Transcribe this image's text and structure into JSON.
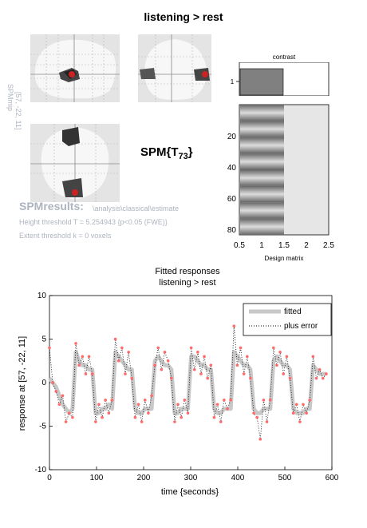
{
  "window": {
    "title": "listening > rest"
  },
  "mip": {
    "side_label": "SPMmip",
    "coords_label": "[57, -22, 11]",
    "stat_label": "SPM{T",
    "stat_sub": "73",
    "stat_close": "}"
  },
  "results": {
    "title": "SPMresults:",
    "path": "\\analysis\\classical\\estimate",
    "height_threshold": "Height threshold T = 5.254943  {p<0.05 (FWE)}",
    "extent_threshold": "Extent threshold k = 0 voxels"
  },
  "contrast": {
    "label": "contrast",
    "y_tick": "1"
  },
  "design_matrix": {
    "xlabel": "Design matrix",
    "x_ticks": [
      "0.5",
      "1",
      "1.5",
      "2",
      "2.5"
    ],
    "y_ticks": [
      "20",
      "40",
      "60",
      "80"
    ]
  },
  "fitted": {
    "title_line1": "Fitted responses",
    "title_line2": "listening > rest",
    "xlabel": "time {seconds}",
    "ylabel": "response at [57, -22, 11]",
    "legend": [
      "fitted",
      "plus error"
    ]
  },
  "chart_data": {
    "type": "line",
    "title": "Fitted responses",
    "subtitle": "listening > rest",
    "xlabel": "time {seconds}",
    "ylabel": "response at [57, -22, 11]",
    "xlim": [
      0,
      600
    ],
    "ylim": [
      -10,
      10
    ],
    "x_ticks": [
      0,
      100,
      200,
      300,
      400,
      500,
      600
    ],
    "y_ticks": [
      -10,
      -5,
      0,
      5,
      10
    ],
    "legend_position": "top-right",
    "grid": false,
    "series": [
      {
        "name": "fitted",
        "color": "#c8c8c8",
        "x": [
          0,
          7,
          14,
          21,
          28,
          35,
          42,
          49,
          56,
          63,
          70,
          77,
          84,
          91,
          98,
          105,
          112,
          119,
          126,
          133,
          140,
          147,
          154,
          161,
          168,
          175,
          182,
          189,
          196,
          203,
          210,
          217,
          224,
          231,
          238,
          245,
          252,
          259,
          266,
          273,
          280,
          287,
          294,
          301,
          308,
          315,
          322,
          329,
          336,
          343,
          350,
          357,
          364,
          371,
          378,
          385,
          392,
          399,
          406,
          413,
          420,
          427,
          434,
          441,
          448,
          455,
          462,
          469,
          476,
          483,
          490,
          497,
          504,
          511,
          518,
          525,
          532,
          539,
          546,
          553,
          560,
          567,
          574,
          581,
          588
        ],
        "y": [
          0.5,
          0,
          -0.5,
          -1.5,
          -2.5,
          -3,
          -3.5,
          -3,
          3.5,
          2.5,
          2,
          2,
          1.5,
          1.5,
          -3.5,
          -3.5,
          -3,
          -3,
          -2.5,
          -3,
          3.5,
          3,
          2.5,
          2,
          1.5,
          1.5,
          -3,
          -3.5,
          -3.5,
          -3,
          -3,
          -3,
          2.5,
          3,
          2.5,
          2,
          2,
          1.5,
          -3.5,
          -3.5,
          -3,
          -3,
          -3,
          3,
          3,
          2.5,
          2,
          2,
          1.5,
          1.5,
          -3,
          -3.5,
          -3.5,
          -3,
          -3,
          -3,
          3.5,
          3,
          2.5,
          2,
          2,
          1.5,
          -3,
          -3.5,
          -3.5,
          -3,
          -3,
          -3,
          2.5,
          3,
          2.5,
          2,
          2,
          1.5,
          -3,
          -3.5,
          -3.5,
          -3.5,
          -3,
          -3,
          2,
          1.5,
          1,
          1,
          1
        ]
      },
      {
        "name": "plus error",
        "color": "#000000",
        "x": [
          0,
          7,
          14,
          21,
          28,
          35,
          42,
          49,
          56,
          63,
          70,
          77,
          84,
          91,
          98,
          105,
          112,
          119,
          126,
          133,
          140,
          147,
          154,
          161,
          168,
          175,
          182,
          189,
          196,
          203,
          210,
          217,
          224,
          231,
          238,
          245,
          252,
          259,
          266,
          273,
          280,
          287,
          294,
          301,
          308,
          315,
          322,
          329,
          336,
          343,
          350,
          357,
          364,
          371,
          378,
          385,
          392,
          399,
          406,
          413,
          420,
          427,
          434,
          441,
          448,
          455,
          462,
          469,
          476,
          483,
          490,
          497,
          504,
          511,
          518,
          525,
          532,
          539,
          546,
          553,
          560,
          567,
          574,
          581,
          588
        ],
        "y": [
          4,
          0,
          -1,
          -2.5,
          -1.5,
          -4.5,
          -3.5,
          -4,
          4.5,
          2,
          3,
          1,
          3,
          1,
          -4.5,
          -2.5,
          -4,
          -2,
          -3.5,
          -2,
          5,
          2.5,
          4,
          1,
          3.5,
          0.5,
          -4,
          -2.5,
          -4.5,
          -2,
          -3.5,
          -1.5,
          2,
          4,
          1.5,
          3.5,
          2.5,
          0.5,
          -4.5,
          -2.5,
          -4,
          -2,
          -3.5,
          4,
          1.5,
          3.5,
          1,
          3,
          0.5,
          2,
          -4,
          -2.5,
          -4.5,
          -2,
          -3,
          -2,
          6.5,
          2,
          4,
          1,
          3,
          0.5,
          -3.5,
          -4,
          -6.5,
          -2,
          -4.5,
          -2,
          4,
          2,
          3.5,
          1,
          3,
          0.5,
          -3.5,
          -2.5,
          -4.5,
          -2.5,
          -3.5,
          -2,
          3,
          0.5,
          1.5,
          0.5,
          1
        ]
      }
    ]
  },
  "colors": {
    "fitted": "#c8c8c8",
    "error_marker": "#ff6a6a",
    "glass_bg": "#e8e8e8",
    "results_text": "#aeb4bf"
  }
}
